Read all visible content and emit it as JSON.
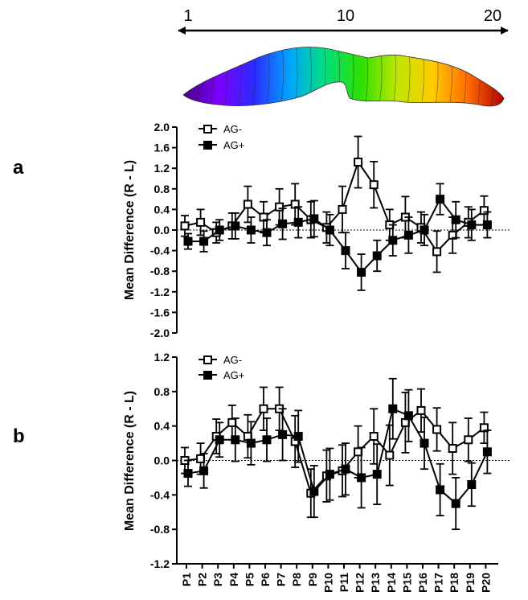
{
  "figure": {
    "axis_start_label": "1",
    "axis_mid_label": "10",
    "axis_end_label": "20",
    "gradient_colors": [
      "#4b0082",
      "#7b00ff",
      "#2a2cff",
      "#00a6ff",
      "#00e07a",
      "#2fe000",
      "#bfe600",
      "#ffcc00",
      "#ff6a00",
      "#b30000"
    ]
  },
  "chart_data": [
    {
      "type": "line",
      "panel_label": "a",
      "ylabel": "Mean Difference (R - L)",
      "ylim": [
        -2.0,
        2.0
      ],
      "yticks": [
        "2.0",
        "1.6",
        "1.2",
        "0.8",
        "0.4",
        "0.0",
        "-0.4",
        "-0.8",
        "-1.2",
        "-1.6",
        "-2.0"
      ],
      "yticks_values": [
        2.0,
        1.6,
        1.2,
        0.8,
        0.4,
        0.0,
        -0.4,
        -0.8,
        -1.2,
        -1.6,
        -2.0
      ],
      "categories": [
        "P1",
        "P2",
        "P3",
        "P4",
        "P5",
        "P6",
        "P7",
        "P8",
        "P9",
        "P10",
        "P11",
        "P12",
        "P13",
        "P14",
        "P15",
        "P16",
        "P17",
        "P18",
        "P19",
        "P20"
      ],
      "zero_line": true,
      "legend_position": "top-left",
      "series": [
        {
          "name": "AG-",
          "marker": "open-square",
          "values": [
            0.08,
            0.15,
            -0.05,
            0.08,
            0.5,
            0.25,
            0.45,
            0.5,
            0.2,
            0.05,
            0.4,
            1.32,
            0.88,
            0.1,
            0.25,
            0.05,
            -0.42,
            -0.1,
            0.15,
            0.38
          ],
          "errors": [
            0.2,
            0.25,
            0.2,
            0.25,
            0.35,
            0.3,
            0.35,
            0.4,
            0.35,
            0.3,
            0.45,
            0.5,
            0.45,
            0.3,
            0.4,
            0.3,
            0.4,
            0.35,
            0.3,
            0.28
          ]
        },
        {
          "name": "AG+",
          "marker": "filled-square",
          "values": [
            -0.22,
            -0.22,
            0.0,
            0.08,
            0.0,
            -0.05,
            0.12,
            0.15,
            0.22,
            0.0,
            -0.4,
            -0.82,
            -0.5,
            -0.2,
            -0.1,
            0.0,
            0.6,
            0.2,
            0.1,
            0.1
          ],
          "errors": [
            0.15,
            0.2,
            0.2,
            0.25,
            0.25,
            0.25,
            0.3,
            0.3,
            0.35,
            0.3,
            0.35,
            0.35,
            0.3,
            0.3,
            0.35,
            0.3,
            0.3,
            0.35,
            0.3,
            0.25
          ]
        }
      ]
    },
    {
      "type": "line",
      "panel_label": "b",
      "ylabel": "Mean Difference (R - L)",
      "ylim": [
        -1.2,
        1.2
      ],
      "yticks": [
        "1.2",
        "0.8",
        "0.4",
        "0.0",
        "-0.4",
        "-0.8",
        "-1.2"
      ],
      "yticks_values": [
        1.2,
        0.8,
        0.4,
        0.0,
        -0.4,
        -0.8,
        -1.2
      ],
      "categories": [
        "P1",
        "P2",
        "P3",
        "P4",
        "P5",
        "P6",
        "P7",
        "P8",
        "P9",
        "P10",
        "P11",
        "P12",
        "P13",
        "P14",
        "P15",
        "P16",
        "P17",
        "P18",
        "P19",
        "P20"
      ],
      "zero_line": true,
      "legend_position": "top-left",
      "series": [
        {
          "name": "AG-",
          "marker": "open-square",
          "values": [
            0.0,
            0.02,
            0.28,
            0.44,
            0.28,
            0.6,
            0.6,
            0.22,
            -0.38,
            -0.18,
            -0.12,
            0.1,
            0.28,
            0.06,
            0.44,
            0.58,
            0.36,
            0.14,
            0.24,
            0.38
          ],
          "errors": [
            0.15,
            0.18,
            0.2,
            0.2,
            0.25,
            0.25,
            0.25,
            0.3,
            0.28,
            0.3,
            0.3,
            0.3,
            0.32,
            0.35,
            0.35,
            0.25,
            0.25,
            0.3,
            0.25,
            0.18
          ]
        },
        {
          "name": "AG+",
          "marker": "filled-square",
          "values": [
            -0.15,
            -0.12,
            0.24,
            0.24,
            0.2,
            0.24,
            0.3,
            0.28,
            -0.36,
            -0.16,
            -0.1,
            -0.2,
            -0.16,
            0.6,
            0.52,
            0.2,
            -0.34,
            -0.5,
            -0.28,
            0.1
          ],
          "errors": [
            0.15,
            0.2,
            0.2,
            0.25,
            0.25,
            0.25,
            0.3,
            0.3,
            0.3,
            0.3,
            0.3,
            0.35,
            0.35,
            0.35,
            0.3,
            0.3,
            0.3,
            0.3,
            0.25,
            0.25
          ]
        }
      ]
    }
  ]
}
